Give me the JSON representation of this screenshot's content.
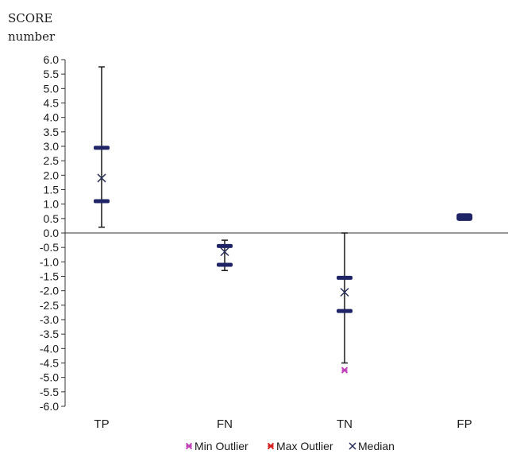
{
  "chart_data": {
    "type": "box",
    "ylabel_lines": [
      "SCORE",
      "number"
    ],
    "ylim": [
      -6.0,
      6.0
    ],
    "yticks": [
      "6.0",
      "5.5",
      "5.0",
      "4.5",
      "4.0",
      "3.5",
      "3.0",
      "2.5",
      "2.0",
      "1.5",
      "1.0",
      "0.5",
      "0.0",
      "-0.5",
      "-1.0",
      "-1.5",
      "-2.0",
      "-2.5",
      "-3.0",
      "-3.5",
      "-4.0",
      "-4.5",
      "-5.0",
      "-5.5",
      "-6.0"
    ],
    "categories": [
      "TP",
      "FN",
      "TN",
      "FP"
    ],
    "boxes": [
      {
        "category": "TP",
        "whisker_min": 0.2,
        "q1": 1.1,
        "median": 1.9,
        "q3": 2.95,
        "whisker_max": 5.75,
        "min_outlier": null
      },
      {
        "category": "FN",
        "whisker_min": -1.3,
        "q1": -1.1,
        "median": -0.65,
        "q3": -0.45,
        "whisker_max": -0.25,
        "min_outlier": null
      },
      {
        "category": "TN",
        "whisker_min": -4.5,
        "q1": -2.7,
        "median": -2.05,
        "q3": -1.55,
        "whisker_max": 0.0,
        "min_outlier": -4.75
      },
      {
        "category": "FP",
        "whisker_min": 0.45,
        "q1": 0.5,
        "median": 0.55,
        "q3": 0.6,
        "whisker_max": 0.65,
        "min_outlier": null
      }
    ],
    "legend": [
      {
        "label": "Min Outlier",
        "color": "#c040b8",
        "marker": "asterisk"
      },
      {
        "label": "Max Outlier",
        "color": "#d42020",
        "marker": "asterisk"
      },
      {
        "label": "Median",
        "color": "#2a2f5a",
        "marker": "x"
      }
    ],
    "legend_position": "bottom",
    "colors": {
      "box": "#1f2466",
      "whisker": "#1a1a1a",
      "axis": "#333333",
      "median": "#2a2f5a"
    }
  }
}
